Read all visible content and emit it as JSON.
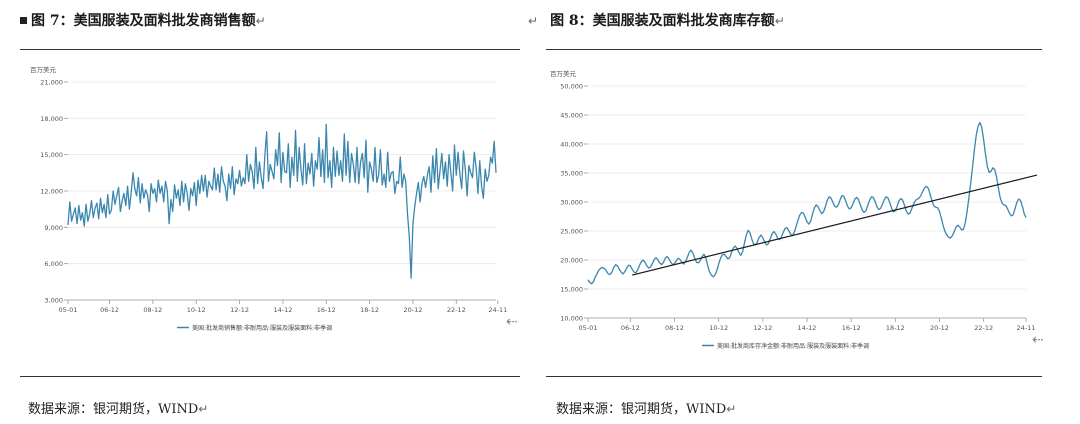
{
  "figures": [
    {
      "title": "图 7：美国服装及面料批发商销售额",
      "return_mark": "↵",
      "source": "数据来源：银河期货，WIND",
      "chart_data": {
        "type": "line",
        "unit_label": "百万美元",
        "ylim": [
          3000,
          21000
        ],
        "yticks": [
          "3,000",
          "6,000",
          "9,000",
          "12,000",
          "15,000",
          "18,000",
          "21,000"
        ],
        "ytick_values": [
          3000,
          6000,
          9000,
          12000,
          15000,
          18000,
          21000
        ],
        "xticks": [
          "05-01",
          "06-12",
          "08-12",
          "10-12",
          "12-12",
          "14-12",
          "16-12",
          "18-12",
          "20-12",
          "22-12",
          "24-11"
        ],
        "xtick_index": [
          0,
          23,
          47,
          71,
          95,
          119,
          143,
          167,
          191,
          215,
          238
        ],
        "grid": true,
        "legend_position": "bottom-center",
        "series": [
          {
            "name": "美国:批发商销售额:非耐用品:服装及服装面料:非季调",
            "color": "#3a86ae",
            "values": [
              9200,
              11100,
              9500,
              10100,
              10600,
              9300,
              10800,
              9600,
              10200,
              9100,
              10900,
              9500,
              10100,
              11200,
              9800,
              10600,
              11000,
              9700,
              11400,
              10200,
              10900,
              9800,
              11700,
              10100,
              10400,
              12000,
              10900,
              11600,
              12300,
              10300,
              11200,
              11800,
              10800,
              12400,
              10500,
              11900,
              13500,
              12200,
              11600,
              13100,
              11000,
              12600,
              11400,
              12100,
              11700,
              10300,
              12600,
              11800,
              12200,
              11100,
              12900,
              11800,
              12400,
              11100,
              12800,
              12000,
              9300,
              11300,
              10300,
              12500,
              11400,
              12100,
              10800,
              12800,
              11100,
              12600,
              11800,
              10400,
              12200,
              11600,
              12700,
              10800,
              12900,
              11800,
              13300,
              12000,
              13300,
              11500,
              12800,
              12400,
              12100,
              13900,
              12100,
              13400,
              11900,
              14000,
              12800,
              12400,
              11200,
              13400,
              12200,
              14000,
              11700,
              13000,
              12600,
              13700,
              12400,
              13100,
              12600,
              15000,
              12800,
              14200,
              13600,
              12200,
              15600,
              12600,
              14400,
              13100,
              12200,
              14900,
              16900,
              12800,
              14200,
              13600,
              13000,
              15400,
              14100,
              16800,
              12700,
              15200,
              13600,
              13500,
              15900,
              12300,
              14800,
              13300,
              17000,
              12800,
              15600,
              13800,
              12500,
              15900,
              12600,
              14300,
              13400,
              15100,
              12400,
              14500,
              13800,
              16400,
              13200,
              15400,
              12700,
              17500,
              13100,
              14500,
              12300,
              15600,
              13200,
              15300,
              13300,
              14500,
              12800,
              16700,
              13300,
              16100,
              12700,
              15100,
              14200,
              12700,
              15600,
              12600,
              14400,
              15100,
              13100,
              16200,
              11900,
              14400,
              13800,
              12800,
              15600,
              12700,
              13300,
              15400,
              12500,
              13400,
              12300,
              15200,
              12800,
              13500,
              13600,
              11800,
              12800,
              12600,
              14800,
              12300,
              13400,
              12800,
              10100,
              8200,
              4800,
              9300,
              10700,
              11800,
              12700,
              11100,
              12600,
              13200,
              12300,
              13300,
              14000,
              11900,
              14900,
              12700,
              15500,
              12200,
              13700,
              15100,
              13000,
              14400,
              12400,
              15000,
              13500,
              12000,
              15800,
              13300,
              15200,
              13400,
              12200,
              15300,
              13800,
              11600,
              14100,
              13500,
              13100,
              15200,
              13900,
              11800,
              14500,
              12400,
              11400,
              13800,
              12800,
              13300,
              14800,
              14300,
              16100,
              13500
            ],
            "notes": "monthly, 2005-01 to 2024-11"
          }
        ]
      }
    },
    {
      "title": "图 8：美国服装及面料批发商库存额",
      "return_mark": "↵",
      "leading_mark": "↵",
      "source": "数据来源：银河期货，WIND",
      "chart_data": {
        "type": "line",
        "unit_label": "百万美元",
        "ylim": [
          10000,
          50000
        ],
        "yticks": [
          "10,000",
          "15,000",
          "20,000",
          "25,000",
          "30,000",
          "35,000",
          "40,000",
          "45,000",
          "50,000"
        ],
        "ytick_values": [
          10000,
          15000,
          20000,
          25000,
          30000,
          35000,
          40000,
          45000,
          50000
        ],
        "xticks": [
          "05-01",
          "06-12",
          "08-12",
          "10-12",
          "12-12",
          "14-12",
          "16-12",
          "18-12",
          "20-12",
          "22-12",
          "24-11"
        ],
        "xtick_index": [
          0,
          23,
          47,
          71,
          95,
          119,
          143,
          167,
          191,
          215,
          238
        ],
        "grid": true,
        "legend_position": "bottom-center",
        "series": [
          {
            "name": "美国:批发商库存净金额:非耐用品:服装及服装面料:非季调",
            "color": "#3a86ae",
            "values": [
              16600,
              16100,
              15900,
              16300,
              17100,
              17700,
              18300,
              18600,
              18700,
              18500,
              18100,
              17600,
              17500,
              17900,
              18700,
              19200,
              19000,
              18400,
              17900,
              17600,
              18000,
              18600,
              19100,
              19000,
              18400,
              17900,
              17800,
              18300,
              19100,
              19700,
              20000,
              19600,
              19000,
              18600,
              18800,
              19400,
              20100,
              20400,
              20000,
              19500,
              19200,
              19600,
              20300,
              20600,
              20200,
              19600,
              19200,
              19400,
              19900,
              20300,
              20100,
              19600,
              19300,
              19700,
              20500,
              21300,
              21700,
              21200,
              20300,
              19600,
              19500,
              19900,
              20600,
              21000,
              20400,
              19100,
              18000,
              17400,
              17100,
              17400,
              18200,
              19300,
              20300,
              20900,
              21000,
              20600,
              20200,
              20400,
              21300,
              22100,
              22400,
              22000,
              21300,
              20800,
              21400,
              22900,
              24300,
              25100,
              24700,
              23600,
              22800,
              22600,
              23100,
              23900,
              24300,
              23800,
              23100,
              22600,
              22800,
              23600,
              24500,
              24900,
              24500,
              23800,
              23500,
              23900,
              24700,
              25400,
              25600,
              25100,
              24500,
              24200,
              24700,
              25700,
              26800,
              27700,
              28200,
              28100,
              27400,
              26600,
              26200,
              26700,
              27900,
              29000,
              29500,
              29200,
              28500,
              28000,
              28300,
              29200,
              30300,
              30900,
              30700,
              30000,
              29300,
              29100,
              29500,
              30400,
              31100,
              31000,
              30200,
              29300,
              28800,
              29000,
              29700,
              30500,
              30800,
              30400,
              29500,
              28600,
              28200,
              28500,
              29400,
              30300,
              30900,
              30800,
              30100,
              29200,
              28700,
              28900,
              29600,
              30400,
              30900,
              30700,
              29900,
              28900,
              28300,
              28500,
              29300,
              30200,
              30600,
              30300,
              29400,
              28400,
              27900,
              28100,
              28900,
              29700,
              30300,
              30500,
              30700,
              31200,
              31900,
              32500,
              32700,
              32300,
              31200,
              30100,
              29300,
              29100,
              29000,
              28400,
              27200,
              25900,
              24900,
              24300,
              23900,
              23800,
              24200,
              24900,
              25700,
              26000,
              25700,
              25200,
              25300,
              26400,
              28400,
              30800,
              33400,
              36200,
              39100,
              41600,
              43100,
              43700,
              42800,
              40700,
              38200,
              36100,
              35100,
              35300,
              35900,
              35600,
              34300,
              32400,
              30700,
              29800,
              29500,
              29400,
              28800,
              28100,
              27600,
              27800,
              28800,
              29900,
              30500,
              30300,
              29300,
              28000,
              27300
            ]
          },
          {
            "name": "",
            "kind": "trendline",
            "color": "#1a1a1a",
            "start": {
              "x_index": 24,
              "y": 17400
            },
            "end": {
              "x_index": 238,
              "y": 34300
            }
          }
        ]
      }
    }
  ]
}
